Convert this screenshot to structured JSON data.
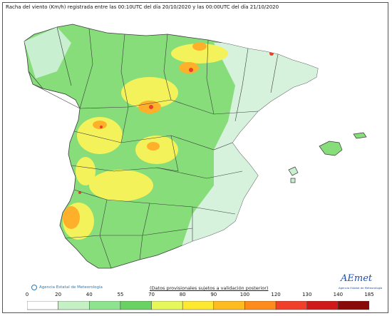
{
  "title": "Racha del viento (Km/h) registrada entre las 00:10UTC del día 20/10/2020 y las 00:00UTC del día 21/10/2020",
  "footer": {
    "agency": "Agencia Estatal de Meteorología",
    "note": "(Datos provisionales sujetos a validación posterior)",
    "brand": "AEmet",
    "brand_sub": "Agencia Estatal de Meteorología"
  },
  "legend": {
    "ticks": [
      "0",
      "20",
      "40",
      "55",
      "70",
      "80",
      "90",
      "100",
      "120",
      "130",
      "140",
      "185"
    ],
    "colors": [
      "#ffffff",
      "#c4f0c4",
      "#8ee38e",
      "#6ad262",
      "#e6f75a",
      "#ffe930",
      "#ffbc1e",
      "#ff8c1a",
      "#f0402a",
      "#d01818",
      "#8a0a0a"
    ]
  },
  "colors": {
    "sea": "#ffffff",
    "land_low": "#d6f2dd",
    "land_mid": "#86dd7a",
    "land_yellow": "#f4f25a",
    "land_orange": "#ffb02a",
    "land_red": "#e8402a",
    "border": "#3a3a3a"
  }
}
